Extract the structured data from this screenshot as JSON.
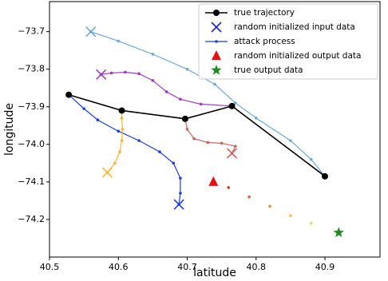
{
  "chart_data": {
    "type": "line",
    "xlabel": "latitude",
    "ylabel": "longitude",
    "xlim": [
      40.5,
      40.98
    ],
    "ylim": [
      -74.3,
      -73.62
    ],
    "xticks": [
      40.5,
      40.6,
      40.7,
      40.8,
      40.9
    ],
    "yticks": [
      {
        "value": -73.7,
        "label": "−73.7"
      },
      {
        "value": -73.8,
        "label": "−73.8"
      },
      {
        "value": -73.9,
        "label": "−73.9"
      },
      {
        "value": -74.0,
        "label": "−74.0"
      },
      {
        "value": -74.1,
        "label": "−74.1"
      },
      {
        "value": -74.2,
        "label": "−74.2"
      }
    ],
    "legend": "upper right",
    "series": [
      {
        "name": "true trajectory",
        "kind": "line-circle",
        "color": "#000000",
        "x": [
          40.528,
          40.605,
          40.697,
          40.765,
          40.9
        ],
        "values": [
          -73.868,
          -73.91,
          -73.932,
          -73.898,
          -74.085
        ]
      },
      {
        "name": "random initialized input data",
        "kind": "cross",
        "color": "#1f1fd6",
        "colors": [
          "#6fa8d0",
          "#9b3fc0",
          "#f5b836",
          "#1f3fd6",
          "#c9635f"
        ],
        "x": [
          40.56,
          40.575,
          40.584,
          40.688,
          40.765
        ],
        "values": [
          -73.7,
          -73.814,
          -74.075,
          -74.16,
          -74.024
        ]
      },
      {
        "name": "attack process",
        "kind": "dots",
        "color": "#1f3fd6",
        "paths": [
          {
            "color": "#6fa8d0",
            "x": [
              40.56,
              40.6,
              40.65,
              40.7,
              40.74,
              40.77,
              40.8,
              40.85,
              40.88,
              40.9
            ],
            "values": [
              -73.7,
              -73.725,
              -73.76,
              -73.8,
              -73.84,
              -73.89,
              -73.93,
              -73.99,
              -74.04,
              -74.085
            ]
          },
          {
            "color": "#9b3fc0",
            "x": [
              40.575,
              40.59,
              40.61,
              40.63,
              40.65,
              40.67,
              40.69,
              40.72,
              40.765
            ],
            "values": [
              -73.814,
              -73.81,
              -73.808,
              -73.812,
              -73.83,
              -73.86,
              -73.88,
              -73.893,
              -73.898
            ]
          },
          {
            "color": "#1f3fd6",
            "x": [
              40.528,
              40.55,
              40.57,
              40.6,
              40.63,
              40.66,
              40.68,
              40.69,
              40.69,
              40.688
            ],
            "values": [
              -73.868,
              -73.905,
              -73.935,
              -73.965,
              -73.99,
              -74.02,
              -74.05,
              -74.09,
              -74.13,
              -74.16
            ]
          },
          {
            "color": "#f5b836",
            "x": [
              40.584,
              40.595,
              40.602,
              40.605,
              40.606,
              40.605,
              40.605
            ],
            "values": [
              -74.075,
              -74.05,
              -74.02,
              -73.99,
              -73.96,
              -73.93,
              -73.91
            ]
          },
          {
            "color": "#c9635f",
            "x": [
              40.697,
              40.7,
              40.71,
              40.73,
              40.75,
              40.77,
              40.765
            ],
            "values": [
              -73.932,
              -73.96,
              -73.985,
              -73.995,
              -73.997,
              -74.005,
              -74.024
            ]
          },
          {
            "colors": [
              "#c62020",
              "#d23a2a",
              "#e0603a",
              "#f08a3e",
              "#f5c040",
              "#d8e070",
              "#3aa83a"
            ],
            "x": [
              40.738,
              40.76,
              40.79,
              40.82,
              40.85,
              40.88,
              40.92
            ],
            "values": [
              -74.1,
              -74.115,
              -74.14,
              -74.165,
              -74.19,
              -74.21,
              -74.235
            ]
          }
        ]
      },
      {
        "name": "random initialized output data",
        "kind": "triangle",
        "color": "#e81010",
        "x": [
          40.738
        ],
        "values": [
          -74.1
        ]
      },
      {
        "name": "true output data",
        "kind": "star",
        "color": "#1f8a1f",
        "x": [
          40.92
        ],
        "values": [
          -74.235
        ]
      }
    ]
  }
}
